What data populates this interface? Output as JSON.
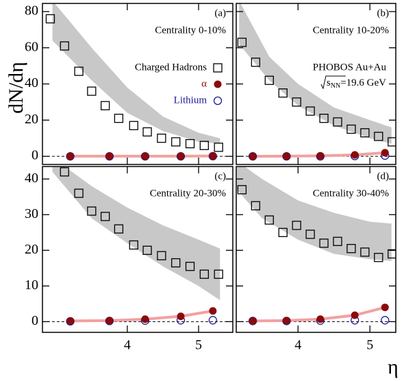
{
  "ylabel": "dN/dη",
  "xlabel": "η",
  "chart_data": [
    {
      "type": "scatter",
      "panel_label": "(a)",
      "annotation": "Centrality 0-10%",
      "xlim": [
        2.81,
        5.48
      ],
      "ylim": [
        -4.5,
        84.5
      ],
      "xticks": [
        4,
        5
      ],
      "yticks": [
        0,
        20,
        40,
        60,
        80
      ],
      "band": {
        "color": "#c8c8c8",
        "x": [
          2.95,
          3.5,
          4.0,
          4.5,
          5.0,
          5.3
        ],
        "upper": [
          86,
          60,
          38,
          22,
          13,
          10
        ],
        "lower": [
          64,
          42,
          24,
          14,
          8,
          7
        ]
      },
      "series": [
        {
          "name": "Charged Hadrons",
          "color": "#000000",
          "marker": "square-open",
          "x": [
            2.92,
            3.12,
            3.32,
            3.5,
            3.69,
            3.88,
            4.09,
            4.28,
            4.48,
            4.68,
            4.88,
            5.08,
            5.28
          ],
          "values": [
            76,
            61,
            47,
            36,
            28,
            21,
            17,
            13.5,
            10,
            8,
            7,
            6,
            5
          ]
        },
        {
          "name": "α",
          "color": "#8b0a0a",
          "marker": "circle-filled",
          "x": [
            3.2,
            3.75,
            4.25,
            4.75,
            5.2
          ],
          "values": [
            0.1,
            0.1,
            0.1,
            0.1,
            0.2
          ]
        },
        {
          "name": "Lithium",
          "color": "#1c1c96",
          "marker": "circle-open",
          "x": [
            3.2,
            3.75,
            4.25,
            4.75,
            5.2
          ],
          "values": [
            0,
            0,
            0,
            0,
            0.1
          ]
        }
      ]
    },
    {
      "type": "scatter",
      "panel_label": "(b)",
      "annotation": "Centrality 10-20%",
      "experiment": "PHOBOS Au+Au",
      "energy": {
        "symbol": "s",
        "sub": "NN",
        "rest": "=19.6 GeV"
      },
      "xlim": [
        3.14,
        5.36
      ],
      "ylim": [
        -4.5,
        84.5
      ],
      "xticks": [
        4,
        5
      ],
      "yticks": [
        0,
        20,
        40,
        60,
        80
      ],
      "band": {
        "color": "#c8c8c8",
        "x": [
          3.18,
          3.6,
          4.0,
          4.5,
          5.0,
          5.3
        ],
        "upper": [
          86,
          55,
          40,
          27,
          20,
          16
        ],
        "lower": [
          62,
          42,
          28,
          17,
          10,
          7
        ]
      },
      "series": [
        {
          "color": "#000000",
          "marker": "square-open",
          "x": [
            3.22,
            3.41,
            3.6,
            3.79,
            3.98,
            4.17,
            4.36,
            4.55,
            4.74,
            4.93,
            5.12,
            5.31
          ],
          "values": [
            63,
            52,
            42,
            35,
            30,
            25,
            21,
            19,
            15,
            13,
            11,
            8
          ]
        },
        {
          "color": "#8b0a0a",
          "marker": "circle-filled",
          "x": [
            3.37,
            3.84,
            4.31,
            4.79,
            5.21
          ],
          "values": [
            0,
            0.1,
            0.3,
            0.8,
            2
          ]
        },
        {
          "color": "#1c1c96",
          "marker": "circle-open",
          "x": [
            3.37,
            3.84,
            4.31,
            4.79,
            5.21
          ],
          "values": [
            0,
            0,
            0,
            0.2,
            0.4
          ]
        }
      ]
    },
    {
      "type": "scatter",
      "panel_label": "(c)",
      "annotation": "Centrality 20-30%",
      "xlim": [
        2.81,
        5.48
      ],
      "ylim": [
        -3,
        43.5
      ],
      "xticks": [
        4,
        5
      ],
      "yticks": [
        0,
        10,
        20,
        30,
        40
      ],
      "band": {
        "color": "#c8c8c8",
        "x": [
          2.95,
          3.5,
          4.0,
          4.5,
          5.0,
          5.3
        ],
        "upper": [
          46,
          38,
          32,
          27,
          23,
          20.5
        ],
        "lower": [
          42,
          29,
          22,
          15.5,
          10,
          6
        ]
      },
      "series": [
        {
          "color": "#000000",
          "marker": "square-open",
          "x": [
            3.12,
            3.32,
            3.5,
            3.69,
            3.88,
            4.09,
            4.28,
            4.48,
            4.68,
            4.88,
            5.08,
            5.28
          ],
          "values": [
            42,
            36,
            31,
            29.5,
            26,
            21.5,
            20,
            18.5,
            16.5,
            15.5,
            13.3,
            13.3
          ]
        },
        {
          "color": "#8b0a0a",
          "marker": "circle-filled",
          "x": [
            3.2,
            3.75,
            4.25,
            4.75,
            5.2
          ],
          "values": [
            0.2,
            0.3,
            0.7,
            1.5,
            3
          ]
        },
        {
          "color": "#1c1c96",
          "marker": "circle-open",
          "x": [
            3.2,
            3.75,
            4.25,
            4.75,
            5.2
          ],
          "values": [
            0.1,
            0.2,
            0.3,
            0.4,
            0.4
          ]
        }
      ]
    },
    {
      "type": "scatter",
      "panel_label": "(d)",
      "annotation": "Centrality 30-40%",
      "xlim": [
        3.14,
        5.36
      ],
      "ylim": [
        -3,
        43.5
      ],
      "xticks": [
        4,
        5
      ],
      "yticks": [
        0,
        10,
        20,
        30,
        40
      ],
      "band": {
        "color": "#c8c8c8",
        "x": [
          3.15,
          3.5,
          4.0,
          4.5,
          5.0,
          5.3
        ],
        "upper": [
          45,
          40,
          34,
          30.5,
          28,
          27.5
        ],
        "lower": [
          37,
          29,
          23,
          19,
          17.5,
          17
        ]
      },
      "series": [
        {
          "color": "#000000",
          "marker": "square-open",
          "x": [
            3.22,
            3.41,
            3.6,
            3.79,
            3.98,
            4.17,
            4.36,
            4.55,
            4.74,
            4.93,
            5.12,
            5.31
          ],
          "values": [
            37,
            32.5,
            28.5,
            25,
            27,
            24.5,
            22,
            22.5,
            20.5,
            19.5,
            18,
            19
          ]
        },
        {
          "color": "#8b0a0a",
          "marker": "circle-filled",
          "x": [
            3.37,
            3.84,
            4.31,
            4.79,
            5.21
          ],
          "values": [
            0.2,
            0.3,
            0.7,
            1.8,
            4
          ]
        },
        {
          "color": "#1c1c96",
          "marker": "circle-open",
          "x": [
            3.37,
            3.84,
            4.31,
            4.79,
            5.21
          ],
          "values": [
            0.2,
            0.2,
            0.3,
            0.4,
            0.4
          ]
        }
      ]
    }
  ]
}
